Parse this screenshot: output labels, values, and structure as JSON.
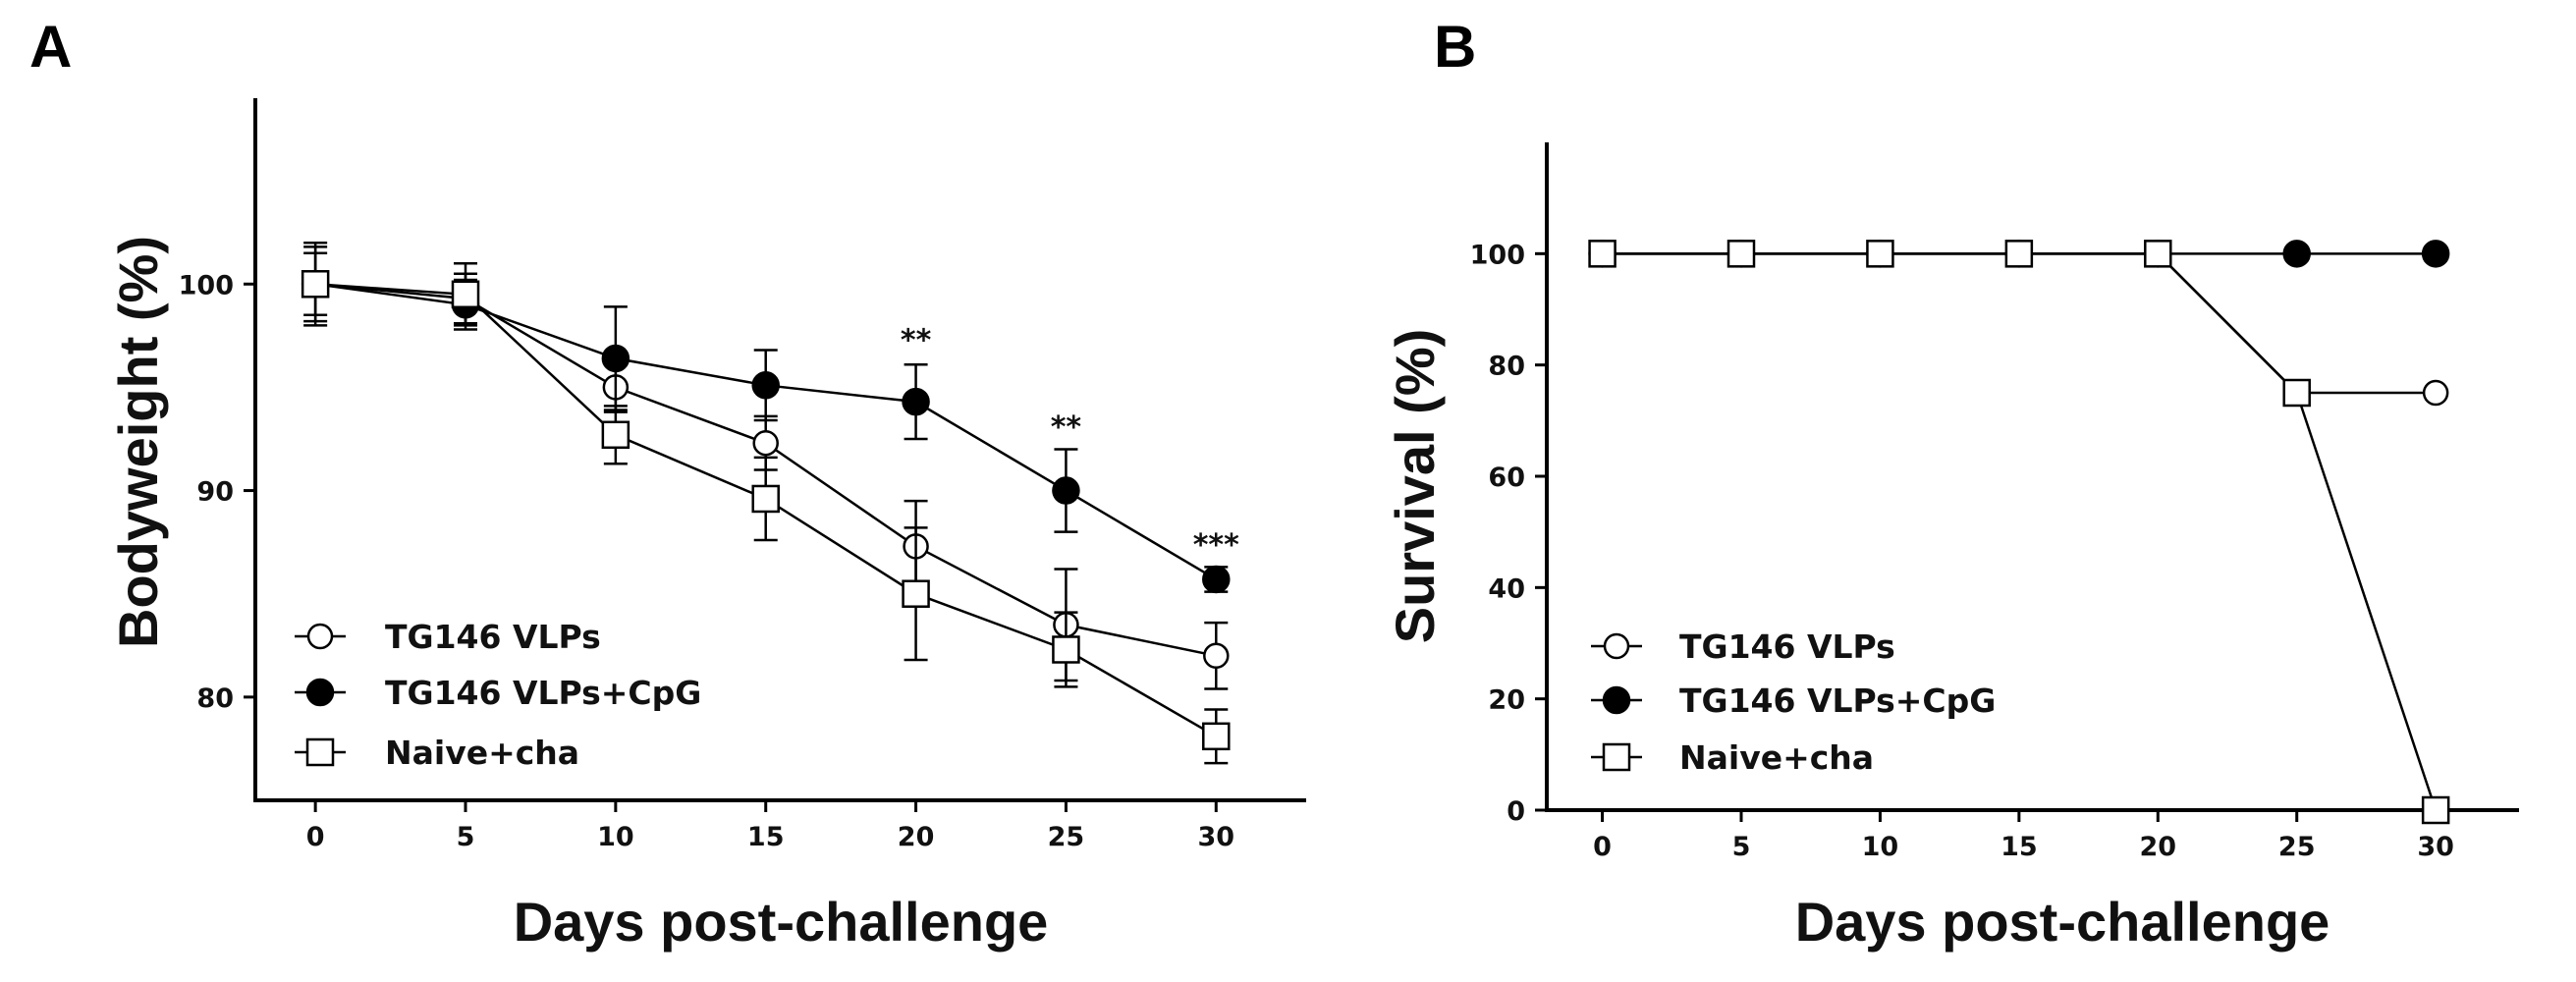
{
  "chart_data": [
    {
      "panel_label": "A",
      "type": "line",
      "xlabel": "Days post-challenge",
      "ylabel": "Bodyweight (%)",
      "x": [
        0,
        5,
        10,
        15,
        20,
        25,
        30
      ],
      "xticks": [
        "0",
        "5",
        "10",
        "15",
        "20",
        "25",
        "30"
      ],
      "yticks": [
        "80",
        "90",
        "100"
      ],
      "xlim": [
        -2,
        33
      ],
      "ylim": [
        75,
        109
      ],
      "legend_position": "bottom-left",
      "series": [
        {
          "name": "TG146 VLPs",
          "marker": "open-circle",
          "values": [
            100,
            99.3,
            95,
            92.3,
            87.3,
            83.5,
            82
          ],
          "errors": [
            1.8,
            1.2,
            1.2,
            1.3,
            2.2,
            2.7,
            1.6
          ]
        },
        {
          "name": "TG146 VLPs+CpG",
          "marker": "filled-circle",
          "values": [
            100,
            99,
            96.4,
            95.1,
            94.3,
            90,
            85.7
          ],
          "errors": [
            1.5,
            1.2,
            2.5,
            1.7,
            1.8,
            2,
            0.6
          ]
        },
        {
          "name": "Naive+cha",
          "marker": "open-square",
          "values": [
            100,
            99.5,
            92.7,
            89.6,
            85,
            82.3,
            78.1
          ],
          "errors": [
            2,
            1.5,
            1.4,
            2,
            3.2,
            1.8,
            1.3
          ]
        }
      ],
      "annotations": [
        {
          "x": 20,
          "y": 96.8,
          "text": "**"
        },
        {
          "x": 25,
          "y": 92.6,
          "text": "**"
        },
        {
          "x": 30,
          "y": 86.9,
          "text": "***"
        }
      ]
    },
    {
      "panel_label": "B",
      "type": "line",
      "xlabel": "Days post-challenge",
      "ylabel": "Survival (%)",
      "x": [
        0,
        5,
        10,
        15,
        20,
        25,
        30
      ],
      "xticks": [
        "0",
        "5",
        "10",
        "15",
        "20",
        "25",
        "30"
      ],
      "yticks": [
        "0",
        "20",
        "40",
        "60",
        "80",
        "100"
      ],
      "xlim": [
        -2,
        33
      ],
      "ylim": [
        0,
        120
      ],
      "legend_position": "bottom-left",
      "series": [
        {
          "name": "TG146 VLPs",
          "marker": "open-circle",
          "values": [
            100,
            100,
            100,
            100,
            100,
            75,
            75
          ]
        },
        {
          "name": "TG146 VLPs+CpG",
          "marker": "filled-circle",
          "values": [
            100,
            100,
            100,
            100,
            100,
            100,
            100
          ]
        },
        {
          "name": "Naive+cha",
          "marker": "open-square",
          "values": [
            100,
            100,
            100,
            100,
            100,
            75,
            0
          ]
        }
      ],
      "annotations": []
    }
  ]
}
